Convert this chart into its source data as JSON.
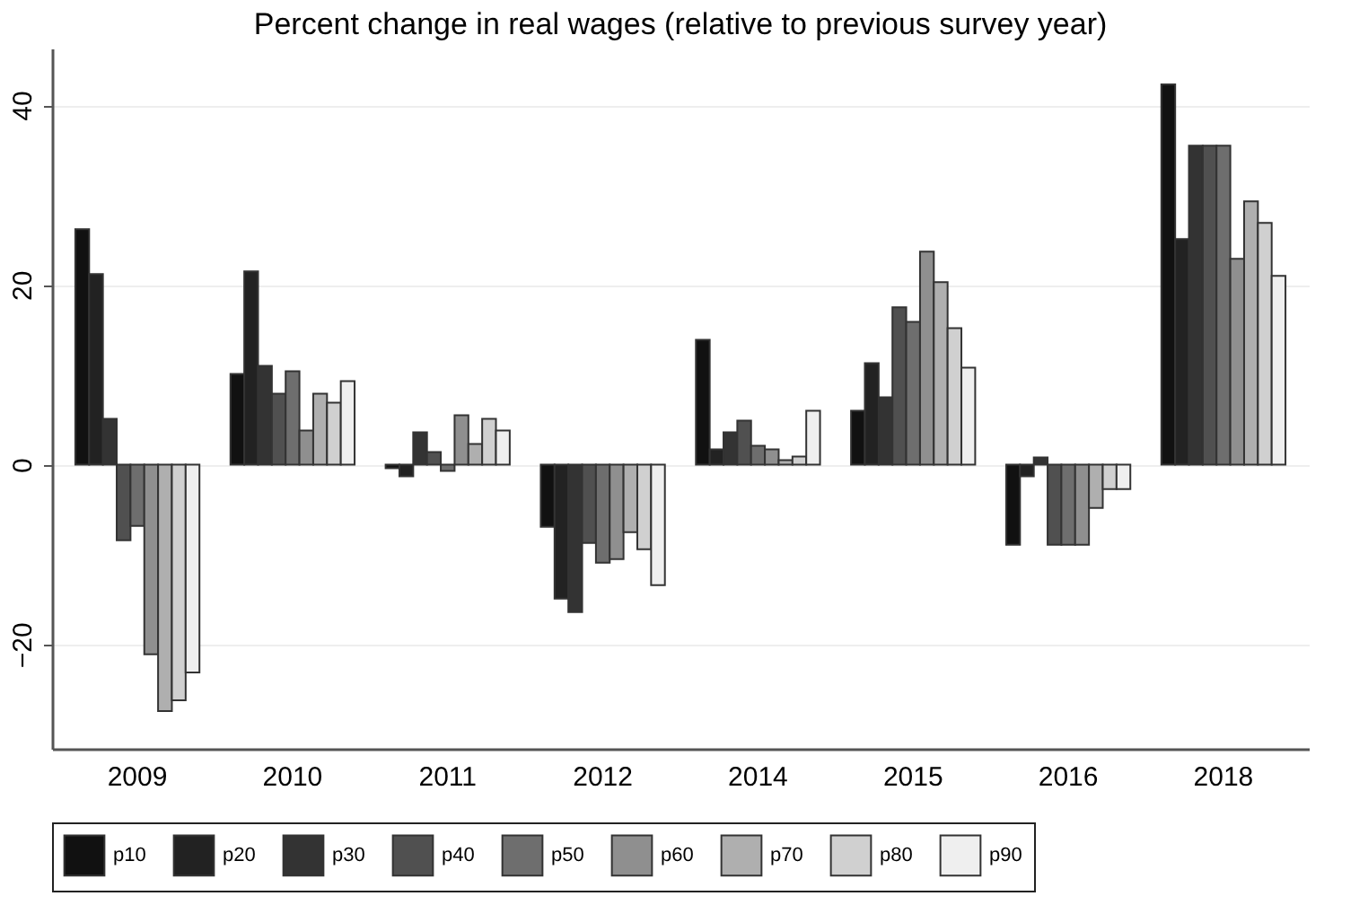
{
  "chart_data": {
    "type": "bar",
    "title": "Percent change in real wages (relative to previous survey year)",
    "categories": [
      "2009",
      "2010",
      "2011",
      "2012",
      "2014",
      "2015",
      "2016",
      "2018"
    ],
    "series": [
      {
        "name": "p10",
        "color": "#111111",
        "values": [
          26.2,
          10.1,
          -0.4,
          -6.9,
          13.9,
          6.0,
          -8.9,
          42.3
        ]
      },
      {
        "name": "p20",
        "color": "#222222",
        "values": [
          21.2,
          21.5,
          -1.3,
          -14.9,
          1.7,
          11.3,
          -1.3,
          25.1
        ]
      },
      {
        "name": "p30",
        "color": "#333333",
        "values": [
          5.1,
          11.0,
          3.6,
          -16.4,
          3.6,
          7.5,
          0.8,
          35.5
        ]
      },
      {
        "name": "p40",
        "color": "#505050",
        "values": [
          -8.4,
          7.9,
          1.4,
          -8.7,
          4.9,
          17.5,
          -8.9,
          35.5
        ]
      },
      {
        "name": "p50",
        "color": "#6e6e6e",
        "values": [
          -6.8,
          10.4,
          -0.7,
          -10.9,
          2.1,
          15.9,
          -8.9,
          35.5
        ]
      },
      {
        "name": "p60",
        "color": "#8f8f8f",
        "values": [
          -21.1,
          3.8,
          5.5,
          -10.5,
          1.7,
          23.7,
          -8.9,
          22.9
        ]
      },
      {
        "name": "p70",
        "color": "#afafaf",
        "values": [
          -27.4,
          7.9,
          2.3,
          -7.5,
          0.5,
          20.3,
          -4.8,
          29.3
        ]
      },
      {
        "name": "p80",
        "color": "#d0d0d0",
        "values": [
          -26.2,
          6.9,
          5.1,
          -9.4,
          0.9,
          15.2,
          -2.7,
          26.9
        ]
      },
      {
        "name": "p90",
        "color": "#efefef",
        "values": [
          -23.1,
          9.3,
          3.8,
          -13.4,
          6.0,
          10.8,
          -2.7,
          21.0
        ]
      }
    ],
    "ylim": [
      -31.6,
      46.3
    ],
    "yticks": [
      -20,
      0,
      20,
      40
    ],
    "grid": "y",
    "legend": "bottom"
  }
}
